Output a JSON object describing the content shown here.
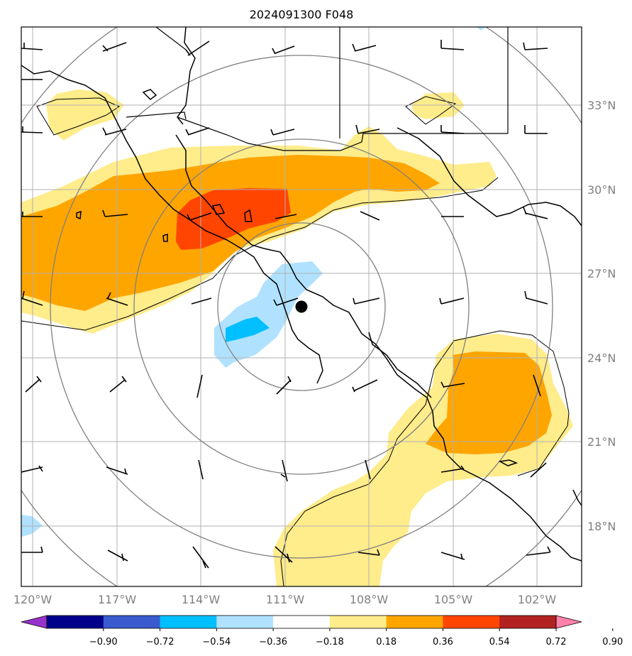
{
  "title": "2024091300 F048",
  "lon_labels": [
    "120°W",
    "117°W",
    "114°W",
    "111°W",
    "108°W",
    "105°W",
    "102°W"
  ],
  "lat_labels": [
    "33°N",
    "30°N",
    "27°N",
    "24°N",
    "21°N",
    "18°N"
  ],
  "colorbar": {
    "colors": [
      "#9932cc",
      "#00008b",
      "#3a5bcd",
      "#00bfff",
      "#b0e2ff",
      "#ffffff",
      "#ffec8b",
      "#ffa500",
      "#ff4500",
      "#b22222",
      "#ff82ab"
    ],
    "labels": [
      "−0.90",
      "−0.72",
      "−0.54",
      "−0.36",
      "−0.18",
      "0.18",
      "0.36",
      "0.54",
      "0.72",
      "0.90"
    ]
  },
  "center_marker": {
    "lon": "-110.3",
    "lat": "25.8"
  }
}
